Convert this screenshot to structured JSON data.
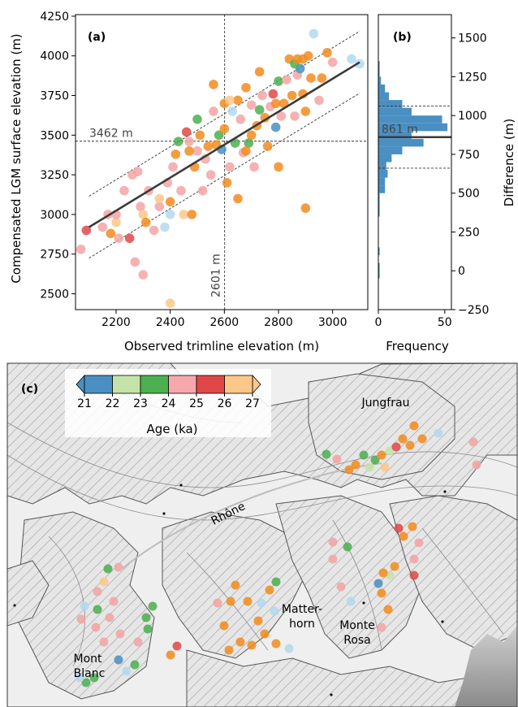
{
  "chart_data": [
    {
      "panel": "(a)",
      "type": "scatter",
      "xlabel": "Observed trimline elevation (m)",
      "ylabel": "Compensated LGM surface elevation (m)",
      "xlim": [
        2050,
        3130
      ],
      "ylim": [
        2400,
        4260
      ],
      "xticks": [
        "2200",
        "2400",
        "2600",
        "2800",
        "3000"
      ],
      "yticks": [
        "2500",
        "2750",
        "3000",
        "3250",
        "3500",
        "3750",
        "4000",
        "4250"
      ],
      "grid": false,
      "mean_obs_label": "2601 m",
      "mean_obs": 2601,
      "mean_lgm_label": "3462 m",
      "mean_lgm": 3462,
      "fit_line": {
        "x": [
          2100,
          3100
        ],
        "y": [
          2920,
          3960
        ]
      },
      "band_upper": {
        "x": [
          2100,
          3100
        ],
        "y": [
          3115,
          4155
        ]
      },
      "band_lower": {
        "x": [
          2100,
          3100
        ],
        "y": [
          2725,
          3765
        ]
      },
      "point_colors_by_age": {
        "21": "#4a8fc2",
        "22": "#b3d9f0",
        "23": "#4caf50",
        "24": "#f4a4a4",
        "25": "#e04848",
        "26": "#f28c1e",
        "27": "#fcc88a"
      },
      "points": [
        [
          2070,
          2780,
          "24"
        ],
        [
          2090,
          2900,
          "25"
        ],
        [
          2150,
          2920,
          "24"
        ],
        [
          2170,
          3000,
          "24"
        ],
        [
          2180,
          2880,
          "26"
        ],
        [
          2200,
          2950,
          "27"
        ],
        [
          2200,
          3000,
          "24"
        ],
        [
          2210,
          2850,
          "24"
        ],
        [
          2230,
          3150,
          "24"
        ],
        [
          2250,
          2850,
          "25"
        ],
        [
          2260,
          3250,
          "24"
        ],
        [
          2270,
          2700,
          "24"
        ],
        [
          2280,
          3270,
          "24"
        ],
        [
          2290,
          3050,
          "24"
        ],
        [
          2300,
          2620,
          "24"
        ],
        [
          2300,
          3000,
          "27"
        ],
        [
          2310,
          2950,
          "26"
        ],
        [
          2320,
          3150,
          "24"
        ],
        [
          2340,
          2900,
          "24"
        ],
        [
          2360,
          3050,
          "24"
        ],
        [
          2380,
          2920,
          "22"
        ],
        [
          2390,
          3200,
          "24"
        ],
        [
          2400,
          2440,
          "27"
        ],
        [
          2400,
          3000,
          "22"
        ],
        [
          2400,
          3080,
          "26"
        ],
        [
          2410,
          3300,
          "24"
        ],
        [
          2420,
          3380,
          "26"
        ],
        [
          2430,
          3460,
          "23"
        ],
        [
          2440,
          3150,
          "24"
        ],
        [
          2450,
          3000,
          "27"
        ],
        [
          2460,
          3520,
          "25"
        ],
        [
          2470,
          3460,
          "24"
        ],
        [
          2480,
          3000,
          "26"
        ],
        [
          2490,
          3300,
          "26"
        ],
        [
          2500,
          3400,
          "24"
        ],
        [
          2500,
          3600,
          "23"
        ],
        [
          2510,
          3500,
          "26"
        ],
        [
          2520,
          3150,
          "24"
        ],
        [
          2530,
          3350,
          "24"
        ],
        [
          2540,
          3430,
          "26"
        ],
        [
          2550,
          3250,
          "24"
        ],
        [
          2560,
          3650,
          "24"
        ],
        [
          2570,
          3440,
          "26"
        ],
        [
          2580,
          3500,
          "23"
        ],
        [
          2590,
          3410,
          "21"
        ],
        [
          2600,
          3700,
          "26"
        ],
        [
          2600,
          3540,
          "26"
        ],
        [
          2610,
          3200,
          "26"
        ],
        [
          2620,
          3300,
          "24"
        ],
        [
          2630,
          3650,
          "22"
        ],
        [
          2640,
          3450,
          "23"
        ],
        [
          2650,
          3100,
          "26"
        ],
        [
          2650,
          3720,
          "26"
        ],
        [
          2660,
          3600,
          "24"
        ],
        [
          2670,
          3390,
          "24"
        ],
        [
          2680,
          3800,
          "26"
        ],
        [
          2690,
          3450,
          "23"
        ],
        [
          2700,
          3500,
          "26"
        ],
        [
          2700,
          3690,
          "24"
        ],
        [
          2710,
          3300,
          "24"
        ],
        [
          2720,
          3560,
          "26"
        ],
        [
          2730,
          3900,
          "26"
        ],
        [
          2740,
          3750,
          "24"
        ],
        [
          2750,
          3610,
          "26"
        ],
        [
          2760,
          3430,
          "26"
        ],
        [
          2770,
          3680,
          "24"
        ],
        [
          2780,
          3760,
          "25"
        ],
        [
          2790,
          3550,
          "21"
        ],
        [
          2790,
          3700,
          "26"
        ],
        [
          2800,
          3300,
          "26"
        ],
        [
          2800,
          3840,
          "23"
        ],
        [
          2810,
          3620,
          "24"
        ],
        [
          2820,
          3700,
          "26"
        ],
        [
          2830,
          3850,
          "24"
        ],
        [
          2840,
          3980,
          "26"
        ],
        [
          2850,
          3750,
          "26"
        ],
        [
          2860,
          3620,
          "24"
        ],
        [
          2870,
          3880,
          "24"
        ],
        [
          2880,
          3920,
          "21"
        ],
        [
          2890,
          3980,
          "26"
        ],
        [
          2890,
          3760,
          "26"
        ],
        [
          2900,
          3650,
          "26"
        ],
        [
          2900,
          3040,
          "26"
        ],
        [
          2910,
          4000,
          "26"
        ],
        [
          2920,
          3860,
          "26"
        ],
        [
          2930,
          4140,
          "22"
        ],
        [
          2950,
          3720,
          "24"
        ],
        [
          2960,
          3860,
          "26"
        ],
        [
          2980,
          4020,
          "26"
        ],
        [
          3000,
          3960,
          "24"
        ],
        [
          3070,
          3980,
          "22"
        ],
        [
          3100,
          3950,
          "22"
        ],
        [
          2730,
          3660,
          "23"
        ],
        [
          2680,
          3400,
          "26"
        ],
        [
          2560,
          3820,
          "26"
        ],
        [
          2620,
          3720,
          "27"
        ],
        [
          2470,
          3400,
          "26"
        ],
        [
          2360,
          3100,
          "27"
        ],
        [
          2860,
          3950,
          "23"
        ],
        [
          2870,
          3980,
          "26"
        ]
      ]
    },
    {
      "panel": "(b)",
      "type": "bar",
      "orientation": "horizontal",
      "xlabel": "Frequency",
      "ylabel": "Difference (m)",
      "xlim": [
        0,
        55
      ],
      "xticks": [
        "0",
        "50"
      ],
      "ylim": [
        -250,
        1650
      ],
      "yticks": [
        "-250",
        "0",
        "250",
        "500",
        "750",
        "1000",
        "1250",
        "1500"
      ],
      "bin_edges": [
        -50,
        0,
        50,
        100,
        150,
        200,
        250,
        300,
        350,
        400,
        450,
        500,
        550,
        600,
        650,
        700,
        750,
        800,
        850,
        900,
        950,
        1000,
        1050,
        1100,
        1150,
        1200,
        1250,
        1300,
        1350
      ],
      "counts": [
        1,
        1,
        0,
        1,
        0,
        0,
        0,
        0,
        1,
        1,
        1,
        5,
        5,
        7,
        6,
        10,
        18,
        34,
        25,
        52,
        48,
        25,
        18,
        8,
        5,
        2,
        1,
        1
      ],
      "mean_label": "861 m",
      "mean": 861,
      "band": [
        661,
        1061
      ],
      "bar_color": "#4a8fc2"
    },
    {
      "panel": "(c)",
      "type": "map",
      "colorbar_label": "Age (ka)",
      "colorbar_ticks": [
        "21",
        "22",
        "23",
        "24",
        "25",
        "26",
        "27"
      ],
      "colorbar_colors": [
        "#4a8fc2",
        "#c4e3a8",
        "#4caf50",
        "#f7a8ac",
        "#e04848",
        "#fcc88a"
      ],
      "place_labels": [
        "Jungfrau",
        "Rhône",
        "Matter-",
        "horn",
        "Monte",
        "Rosa",
        "Mont",
        "Blanc"
      ]
    }
  ]
}
